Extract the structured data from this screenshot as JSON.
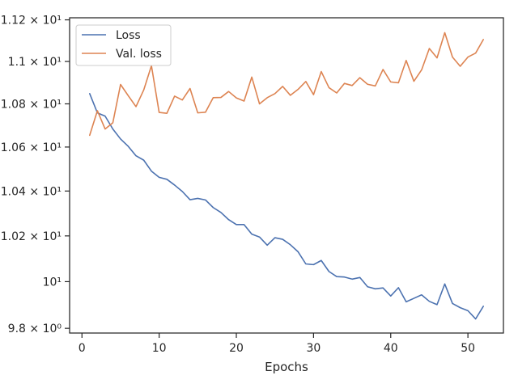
{
  "chart_data": {
    "type": "line",
    "title": "",
    "xlabel": "Epochs",
    "ylabel": "",
    "yscale": "log",
    "xlim": [
      -1.6,
      54.6
    ],
    "ylim": [
      9.78,
      11.21
    ],
    "xticks": [
      0,
      10,
      20,
      30,
      40,
      50
    ],
    "xtick_labels": [
      "0",
      "10",
      "20",
      "30",
      "40",
      "50"
    ],
    "yticks": [
      9.8,
      10.0,
      10.2,
      10.4,
      10.6,
      10.8,
      11.0,
      11.2
    ],
    "ytick_labels": [
      "9.8 × 10⁰",
      "10¹",
      "1.02 × 10¹",
      "1.04 × 10¹",
      "1.06 × 10¹",
      "1.08 × 10¹",
      "1.1 × 10¹",
      "1.12 × 10¹"
    ],
    "grid": false,
    "legend_position": "top-left",
    "x": [
      1,
      2,
      3,
      4,
      5,
      6,
      7,
      8,
      9,
      10,
      11,
      12,
      13,
      14,
      15,
      16,
      17,
      18,
      19,
      20,
      21,
      22,
      23,
      24,
      25,
      26,
      27,
      28,
      29,
      30,
      31,
      32,
      33,
      34,
      35,
      36,
      37,
      38,
      39,
      40,
      41,
      42,
      43,
      44,
      45,
      46,
      47,
      48,
      49,
      50,
      51,
      52
    ],
    "series": [
      {
        "name": "Loss",
        "color": "#4c72b0",
        "values": [
          10.848,
          10.758,
          10.743,
          10.683,
          10.637,
          10.603,
          10.56,
          10.54,
          10.49,
          10.462,
          10.453,
          10.427,
          10.398,
          10.361,
          10.367,
          10.36,
          10.326,
          10.304,
          10.272,
          10.25,
          10.25,
          10.208,
          10.195,
          10.159,
          10.192,
          10.185,
          10.161,
          10.13,
          10.077,
          10.074,
          10.092,
          10.044,
          10.022,
          10.02,
          10.011,
          10.018,
          9.978,
          9.969,
          9.973,
          9.938,
          9.974,
          9.913,
          9.928,
          9.943,
          9.915,
          9.901,
          9.99,
          9.906,
          9.888,
          9.875,
          9.84,
          9.894
        ]
      },
      {
        "name": "Val. loss",
        "color": "#dd8452",
        "values": [
          10.654,
          10.768,
          10.683,
          10.712,
          10.891,
          10.838,
          10.787,
          10.865,
          10.98,
          10.76,
          10.756,
          10.836,
          10.818,
          10.872,
          10.758,
          10.761,
          10.829,
          10.83,
          10.858,
          10.828,
          10.813,
          10.926,
          10.8,
          10.829,
          10.848,
          10.882,
          10.84,
          10.868,
          10.905,
          10.843,
          10.952,
          10.876,
          10.851,
          10.896,
          10.886,
          10.923,
          10.892,
          10.884,
          10.962,
          10.903,
          10.899,
          11.005,
          10.906,
          10.96,
          11.062,
          11.017,
          11.138,
          11.021,
          10.977,
          11.021,
          11.04,
          11.105
        ]
      }
    ]
  }
}
